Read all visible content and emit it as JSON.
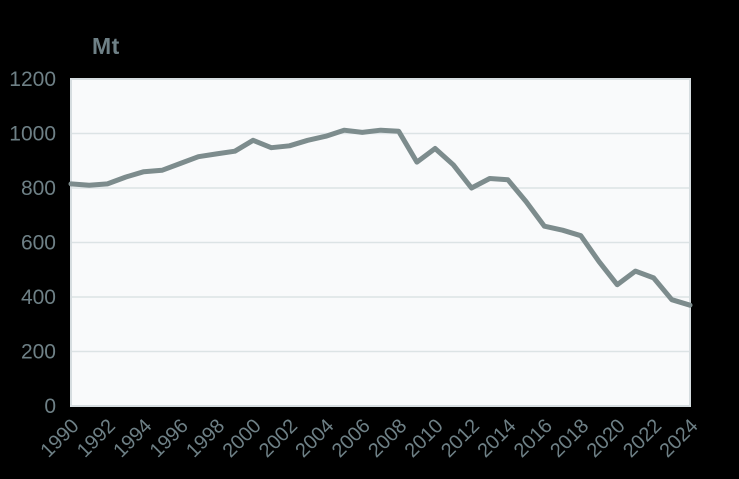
{
  "page": {
    "background": "#000000"
  },
  "chart": {
    "unit_label": "Mt",
    "colors": {
      "background": "#000000",
      "plot_background": "#f9fafb",
      "gridline": "#dce3e5",
      "plot_border": "#d6dde0",
      "line": "#7d8c8d",
      "text": "#6e8086"
    }
  },
  "chart_data": {
    "type": "line",
    "title": "",
    "ylabel": "Mt",
    "xlabel": "",
    "x": [
      1990,
      1991,
      1992,
      1993,
      1994,
      1995,
      1996,
      1997,
      1998,
      1999,
      2000,
      2001,
      2002,
      2003,
      2004,
      2005,
      2006,
      2007,
      2008,
      2009,
      2010,
      2011,
      2012,
      2013,
      2014,
      2015,
      2016,
      2017,
      2018,
      2019,
      2020,
      2021,
      2022,
      2023,
      2024
    ],
    "values": [
      815,
      810,
      815,
      840,
      860,
      865,
      890,
      915,
      925,
      935,
      975,
      948,
      955,
      975,
      990,
      1012,
      1004,
      1012,
      1008,
      895,
      945,
      885,
      800,
      835,
      830,
      750,
      660,
      645,
      625,
      530,
      445,
      495,
      470,
      390,
      370
    ],
    "ylim": [
      0,
      1200
    ],
    "ytick_step": 200,
    "xtick_step": 2,
    "grid": "horizontal",
    "legend": "none"
  }
}
